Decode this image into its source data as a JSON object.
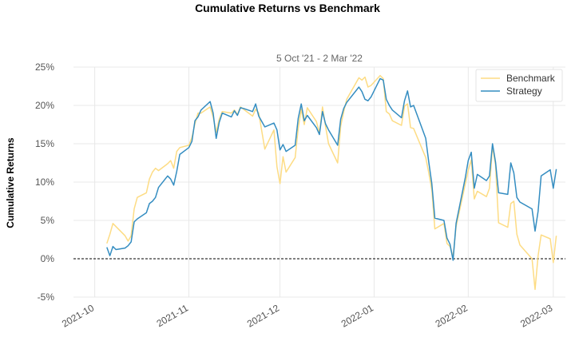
{
  "chart_data": {
    "type": "line",
    "title": "Cumulative Returns vs Benchmark",
    "subtitle": "5 Oct '21 -  2 Mar '22",
    "ylabel": "Cumulative Returns",
    "xlabel": "",
    "ylim": [
      -5,
      25
    ],
    "yticks": [
      "-5%",
      "0%",
      "5%",
      "10%",
      "15%",
      "20%",
      "25%"
    ],
    "ytick_values": [
      -5,
      0,
      5,
      10,
      15,
      20,
      25
    ],
    "xlim": [
      "2021-09-24",
      "2022-03-05"
    ],
    "xticks": [
      "2021-10",
      "2021-11",
      "2021-12",
      "2022-01",
      "2022-02",
      "2022-03"
    ],
    "xtick_dates": [
      "2021-10-01",
      "2021-11-01",
      "2021-12-01",
      "2022-01-01",
      "2022-02-01",
      "2022-03-01"
    ],
    "grid": true,
    "legend": "top-right",
    "baseline": 0,
    "series": [
      {
        "name": "Benchmark",
        "color": "#fddc84",
        "points": [
          [
            "2021-10-05",
            2.0
          ],
          [
            "2021-10-06",
            3.2
          ],
          [
            "2021-10-07",
            4.6
          ],
          [
            "2021-10-08",
            4.2
          ],
          [
            "2021-10-11",
            3.0
          ],
          [
            "2021-10-12",
            2.3
          ],
          [
            "2021-10-13",
            3.0
          ],
          [
            "2021-10-14",
            6.5
          ],
          [
            "2021-10-15",
            8.0
          ],
          [
            "2021-10-18",
            8.6
          ],
          [
            "2021-10-19",
            10.4
          ],
          [
            "2021-10-20",
            11.3
          ],
          [
            "2021-10-21",
            11.8
          ],
          [
            "2021-10-22",
            11.5
          ],
          [
            "2021-10-25",
            12.4
          ],
          [
            "2021-10-26",
            12.8
          ],
          [
            "2021-10-27",
            11.8
          ],
          [
            "2021-10-28",
            14.0
          ],
          [
            "2021-10-29",
            14.5
          ],
          [
            "2021-11-01",
            14.8
          ],
          [
            "2021-11-02",
            15.8
          ],
          [
            "2021-11-03",
            17.6
          ],
          [
            "2021-11-04",
            19.0
          ],
          [
            "2021-11-05",
            19.0
          ],
          [
            "2021-11-08",
            19.8
          ],
          [
            "2021-11-09",
            18.5
          ],
          [
            "2021-11-10",
            16.5
          ],
          [
            "2021-11-11",
            18.2
          ],
          [
            "2021-11-12",
            19.2
          ],
          [
            "2021-11-15",
            19.0
          ],
          [
            "2021-11-16",
            19.4
          ],
          [
            "2021-11-17",
            18.8
          ],
          [
            "2021-11-18",
            19.8
          ],
          [
            "2021-11-19",
            19.5
          ],
          [
            "2021-11-22",
            18.6
          ],
          [
            "2021-11-23",
            19.5
          ],
          [
            "2021-11-24",
            19.0
          ],
          [
            "2021-11-26",
            14.3
          ],
          [
            "2021-11-29",
            16.8
          ],
          [
            "2021-11-30",
            12.0
          ],
          [
            "2021-12-01",
            9.8
          ],
          [
            "2021-12-02",
            13.3
          ],
          [
            "2021-12-03",
            11.3
          ],
          [
            "2021-12-06",
            13.2
          ],
          [
            "2021-12-07",
            17.0
          ],
          [
            "2021-12-08",
            19.5
          ],
          [
            "2021-12-09",
            17.5
          ],
          [
            "2021-12-10",
            19.7
          ],
          [
            "2021-12-13",
            17.9
          ],
          [
            "2021-12-14",
            16.4
          ],
          [
            "2021-12-15",
            19.8
          ],
          [
            "2021-12-16",
            17.3
          ],
          [
            "2021-12-17",
            15.0
          ],
          [
            "2021-12-20",
            12.5
          ],
          [
            "2021-12-21",
            17.3
          ],
          [
            "2021-12-22",
            19.2
          ],
          [
            "2021-12-23",
            20.8
          ],
          [
            "2021-12-27",
            23.6
          ],
          [
            "2021-12-28",
            23.3
          ],
          [
            "2021-12-29",
            23.7
          ],
          [
            "2021-12-30",
            22.4
          ],
          [
            "2021-12-31",
            22.6
          ],
          [
            "2022-01-03",
            23.9
          ],
          [
            "2022-01-04",
            23.5
          ],
          [
            "2022-01-05",
            19.2
          ],
          [
            "2022-01-06",
            18.9
          ],
          [
            "2022-01-07",
            18.0
          ],
          [
            "2022-01-10",
            17.4
          ],
          [
            "2022-01-11",
            19.9
          ],
          [
            "2022-01-12",
            20.2
          ],
          [
            "2022-01-13",
            17.1
          ],
          [
            "2022-01-14",
            17.0
          ],
          [
            "2022-01-18",
            13.2
          ],
          [
            "2022-01-19",
            11.2
          ],
          [
            "2022-01-20",
            9.0
          ],
          [
            "2022-01-21",
            3.9
          ],
          [
            "2022-01-24",
            4.6
          ],
          [
            "2022-01-25",
            2.0
          ],
          [
            "2022-01-26",
            1.6
          ],
          [
            "2022-01-27",
            0.2
          ],
          [
            "2022-01-28",
            4.2
          ],
          [
            "2022-01-31",
            9.7
          ],
          [
            "2022-02-01",
            11.5
          ],
          [
            "2022-02-02",
            12.9
          ],
          [
            "2022-02-03",
            7.8
          ],
          [
            "2022-02-04",
            8.8
          ],
          [
            "2022-02-07",
            8.1
          ],
          [
            "2022-02-08",
            9.2
          ],
          [
            "2022-02-09",
            14.7
          ],
          [
            "2022-02-10",
            12.2
          ],
          [
            "2022-02-11",
            4.7
          ],
          [
            "2022-02-14",
            4.1
          ],
          [
            "2022-02-15",
            7.2
          ],
          [
            "2022-02-16",
            7.5
          ],
          [
            "2022-02-17",
            3.2
          ],
          [
            "2022-02-18",
            1.8
          ],
          [
            "2022-02-22",
            0.0
          ],
          [
            "2022-02-23",
            -4.0
          ],
          [
            "2022-02-24",
            0.4
          ],
          [
            "2022-02-25",
            3.1
          ],
          [
            "2022-02-28",
            2.6
          ],
          [
            "2022-03-01",
            -0.5
          ],
          [
            "2022-03-02",
            3.0
          ]
        ]
      },
      {
        "name": "Strategy",
        "color": "#348dc1",
        "points": [
          [
            "2021-10-05",
            1.5
          ],
          [
            "2021-10-06",
            0.4
          ],
          [
            "2021-10-07",
            1.6
          ],
          [
            "2021-10-08",
            1.2
          ],
          [
            "2021-10-11",
            1.4
          ],
          [
            "2021-10-12",
            1.7
          ],
          [
            "2021-10-13",
            2.2
          ],
          [
            "2021-10-14",
            4.8
          ],
          [
            "2021-10-15",
            5.2
          ],
          [
            "2021-10-18",
            6.0
          ],
          [
            "2021-10-19",
            7.2
          ],
          [
            "2021-10-20",
            7.5
          ],
          [
            "2021-10-21",
            8.0
          ],
          [
            "2021-10-22",
            9.3
          ],
          [
            "2021-10-25",
            10.8
          ],
          [
            "2021-10-26",
            10.4
          ],
          [
            "2021-10-27",
            9.6
          ],
          [
            "2021-10-28",
            11.4
          ],
          [
            "2021-10-29",
            13.6
          ],
          [
            "2021-11-01",
            14.5
          ],
          [
            "2021-11-02",
            15.3
          ],
          [
            "2021-11-03",
            18.0
          ],
          [
            "2021-11-04",
            18.5
          ],
          [
            "2021-11-05",
            19.4
          ],
          [
            "2021-11-08",
            20.5
          ],
          [
            "2021-11-09",
            19.0
          ],
          [
            "2021-11-10",
            15.7
          ],
          [
            "2021-11-11",
            17.8
          ],
          [
            "2021-11-12",
            19.0
          ],
          [
            "2021-11-15",
            18.5
          ],
          [
            "2021-11-16",
            19.3
          ],
          [
            "2021-11-17",
            18.7
          ],
          [
            "2021-11-18",
            19.7
          ],
          [
            "2021-11-19",
            19.6
          ],
          [
            "2021-11-22",
            19.2
          ],
          [
            "2021-11-23",
            20.2
          ],
          [
            "2021-11-24",
            18.6
          ],
          [
            "2021-11-26",
            17.2
          ],
          [
            "2021-11-29",
            17.7
          ],
          [
            "2021-11-30",
            16.8
          ],
          [
            "2021-12-01",
            14.2
          ],
          [
            "2021-12-02",
            14.9
          ],
          [
            "2021-12-03",
            14.0
          ],
          [
            "2021-12-06",
            14.8
          ],
          [
            "2021-12-07",
            18.3
          ],
          [
            "2021-12-08",
            20.2
          ],
          [
            "2021-12-09",
            18.0
          ],
          [
            "2021-12-10",
            18.7
          ],
          [
            "2021-12-13",
            17.1
          ],
          [
            "2021-12-14",
            16.2
          ],
          [
            "2021-12-15",
            19.2
          ],
          [
            "2021-12-16",
            17.6
          ],
          [
            "2021-12-17",
            16.8
          ],
          [
            "2021-12-20",
            14.8
          ],
          [
            "2021-12-21",
            18.2
          ],
          [
            "2021-12-22",
            19.6
          ],
          [
            "2021-12-23",
            20.4
          ],
          [
            "2021-12-27",
            22.4
          ],
          [
            "2021-12-28",
            21.8
          ],
          [
            "2021-12-29",
            20.8
          ],
          [
            "2021-12-30",
            20.6
          ],
          [
            "2021-12-31",
            21.1
          ],
          [
            "2022-01-03",
            23.5
          ],
          [
            "2022-01-04",
            23.3
          ],
          [
            "2022-01-05",
            20.8
          ],
          [
            "2022-01-06",
            20.0
          ],
          [
            "2022-01-07",
            19.4
          ],
          [
            "2022-01-10",
            18.4
          ],
          [
            "2022-01-11",
            20.6
          ],
          [
            "2022-01-12",
            21.9
          ],
          [
            "2022-01-13",
            19.8
          ],
          [
            "2022-01-14",
            20.0
          ],
          [
            "2022-01-18",
            15.7
          ],
          [
            "2022-01-19",
            12.6
          ],
          [
            "2022-01-20",
            9.8
          ],
          [
            "2022-01-21",
            5.3
          ],
          [
            "2022-01-24",
            5.0
          ],
          [
            "2022-01-25",
            2.7
          ],
          [
            "2022-01-26",
            1.9
          ],
          [
            "2022-01-27",
            -0.2
          ],
          [
            "2022-01-28",
            4.6
          ],
          [
            "2022-01-31",
            10.5
          ],
          [
            "2022-02-01",
            12.8
          ],
          [
            "2022-02-02",
            13.9
          ],
          [
            "2022-02-03",
            9.2
          ],
          [
            "2022-02-04",
            11.0
          ],
          [
            "2022-02-07",
            10.2
          ],
          [
            "2022-02-08",
            10.8
          ],
          [
            "2022-02-09",
            15.0
          ],
          [
            "2022-02-10",
            12.6
          ],
          [
            "2022-02-11",
            8.6
          ],
          [
            "2022-02-14",
            8.4
          ],
          [
            "2022-02-15",
            12.5
          ],
          [
            "2022-02-16",
            11.2
          ],
          [
            "2022-02-17",
            8.0
          ],
          [
            "2022-02-18",
            7.4
          ],
          [
            "2022-02-22",
            6.5
          ],
          [
            "2022-02-23",
            3.6
          ],
          [
            "2022-02-24",
            6.2
          ],
          [
            "2022-02-25",
            10.8
          ],
          [
            "2022-02-28",
            11.6
          ],
          [
            "2022-03-01",
            9.2
          ],
          [
            "2022-03-02",
            11.7
          ]
        ]
      }
    ]
  }
}
